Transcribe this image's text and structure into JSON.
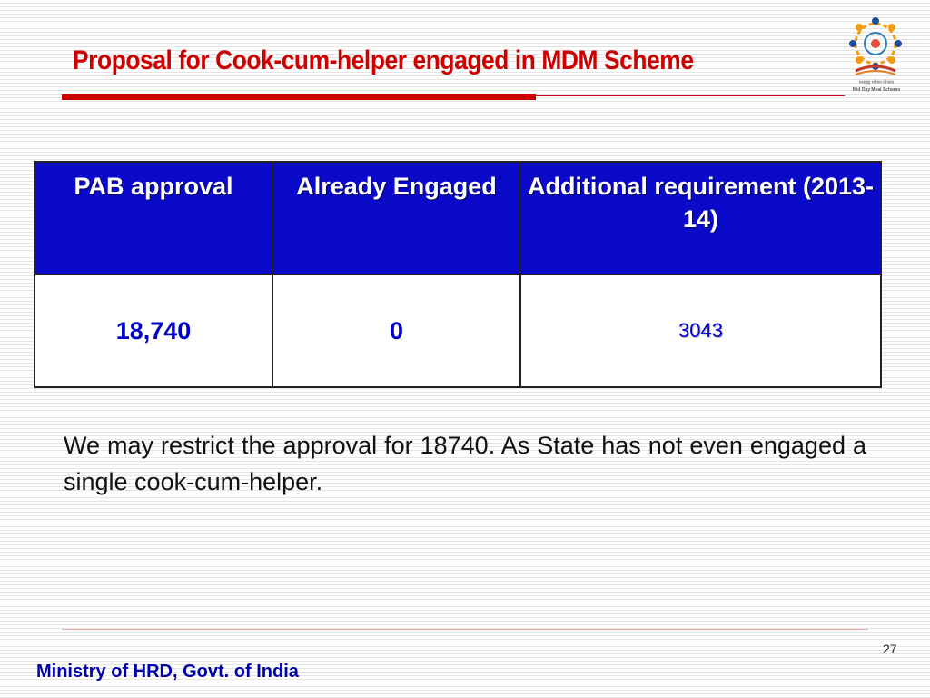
{
  "slide": {
    "title": "Proposal for Cook-cum-helper engaged in MDM Scheme",
    "logo": {
      "icon": "mid-day-meal-logo",
      "caption_hindi": "मध्याह्न भोजन योजना",
      "caption": "Mid Day Meal Scheme"
    },
    "table": {
      "headers": [
        "PAB approval",
        "Already Engaged",
        "Additional requirement (2013-14)"
      ],
      "values": [
        "18,740",
        "0",
        "3043"
      ]
    },
    "note": "We may restrict the approval for 18740. As State has not even engaged a single cook-cum-helper.",
    "page_number": "27",
    "footer": "Ministry of HRD, Govt. of India"
  },
  "colors": {
    "title": "#cc0000",
    "header_bg": "#0a0ac8",
    "value_text": "#0000cc",
    "footer_text": "#0000aa"
  }
}
